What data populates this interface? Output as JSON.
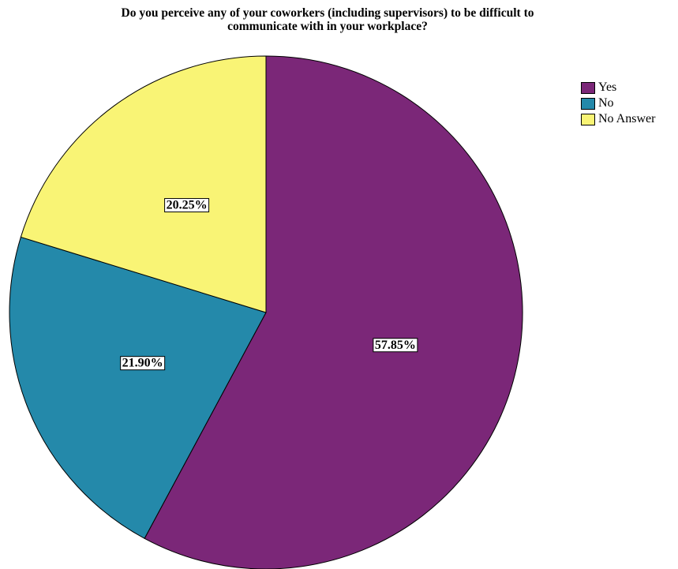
{
  "chart_data": {
    "type": "pie",
    "title": "Do you perceive any of your coworkers (including supervisors) to be difficult to communicate with in your workplace?",
    "title_lines": [
      "Do you perceive any of your coworkers (including supervisors) to be difficult to",
      "communicate with in your workplace?"
    ],
    "slices": [
      {
        "label": "Yes",
        "value": 57.85,
        "display": "57.85%",
        "color": "#7b2778"
      },
      {
        "label": "No",
        "value": 21.9,
        "display": "21.90%",
        "color": "#2489aa"
      },
      {
        "label": "No Answer",
        "value": 20.25,
        "display": "20.25%",
        "color": "#f9f475"
      }
    ],
    "legend_position": "top-right",
    "start_angle": "12 o'clock",
    "direction": "clockwise"
  }
}
